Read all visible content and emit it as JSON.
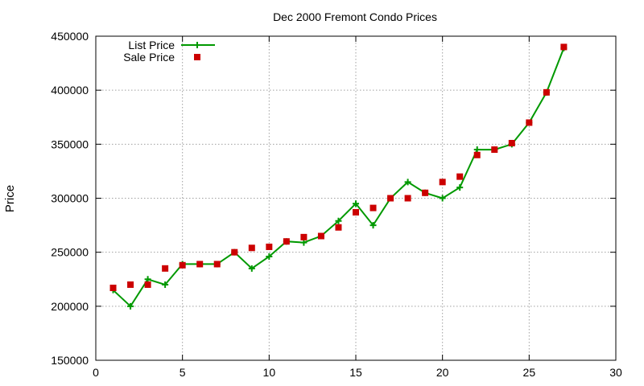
{
  "chart_data": {
    "type": "line",
    "title": "Dec 2000 Fremont Condo Prices",
    "xlabel": "",
    "ylabel": "Price",
    "xlim": [
      0,
      30
    ],
    "ylim": [
      150000,
      450000
    ],
    "xticks": [
      0,
      5,
      10,
      15,
      20,
      25,
      30
    ],
    "yticks": [
      150000,
      200000,
      250000,
      300000,
      350000,
      400000,
      450000
    ],
    "grid": true,
    "legend_position": "top-left",
    "series": [
      {
        "name": "List Price",
        "style": "line+cross",
        "color": "#009900",
        "x": [
          1,
          2,
          3,
          4,
          5,
          6,
          7,
          8,
          9,
          10,
          11,
          12,
          13,
          14,
          15,
          16,
          17,
          18,
          19,
          20,
          21,
          22,
          23,
          24,
          25,
          26,
          27
        ],
        "values": [
          215000,
          200000,
          225000,
          220000,
          239000,
          239000,
          239000,
          250000,
          235000,
          246000,
          260000,
          259000,
          265000,
          279000,
          295000,
          275000,
          300000,
          315000,
          305000,
          300000,
          310000,
          345000,
          345000,
          350000,
          370000,
          398000,
          439000
        ]
      },
      {
        "name": "Sale Price",
        "style": "square",
        "color": "#cc0000",
        "x": [
          1,
          2,
          3,
          4,
          5,
          6,
          7,
          8,
          9,
          10,
          11,
          12,
          13,
          14,
          15,
          16,
          17,
          18,
          19,
          20,
          21,
          22,
          23,
          24,
          25,
          26,
          27
        ],
        "values": [
          217000,
          220000,
          220000,
          235000,
          238000,
          239000,
          239000,
          250000,
          254000,
          255000,
          260000,
          264000,
          265000,
          273000,
          287000,
          291000,
          300000,
          300000,
          305000,
          315000,
          320000,
          340000,
          345000,
          351000,
          370000,
          398000,
          440000
        ]
      }
    ]
  }
}
